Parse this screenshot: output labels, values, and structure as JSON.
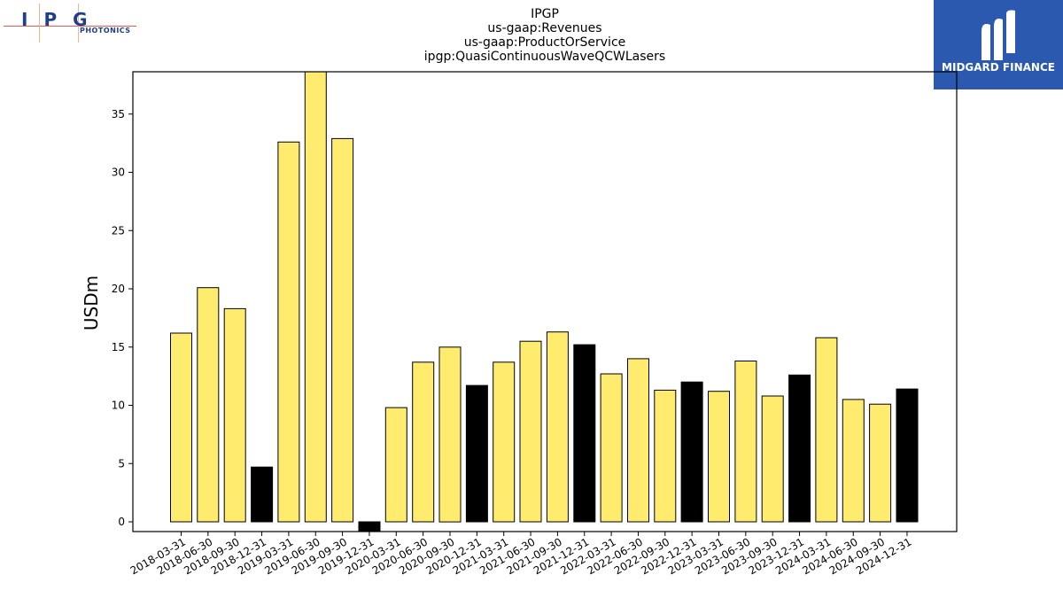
{
  "logos": {
    "left_letters": "IPG",
    "left_sub": "PHOTONICS",
    "right_name": "MIDGARD FINANCE"
  },
  "chart_data": {
    "type": "bar",
    "title_lines": [
      "IPGP",
      "us-gaap:Revenues",
      "us-gaap:ProductOrService",
      "ipgp:QuasiContinuousWaveQCWLasers"
    ],
    "ylabel": "USDm",
    "xlabel": "",
    "ylim": [
      -0.9,
      38.7
    ],
    "yticks": [
      0,
      5,
      10,
      15,
      20,
      25,
      30,
      35
    ],
    "grid": false,
    "categories": [
      "2018-03-31",
      "2018-06-30",
      "2018-09-30",
      "2018-12-31",
      "2019-03-31",
      "2019-06-30",
      "2019-09-30",
      "2019-12-31",
      "2020-03-31",
      "2020-06-30",
      "2020-09-30",
      "2020-12-31",
      "2021-03-31",
      "2021-06-30",
      "2021-09-30",
      "2021-12-31",
      "2022-03-31",
      "2022-06-30",
      "2022-09-30",
      "2022-12-31",
      "2023-03-31",
      "2023-06-30",
      "2023-09-30",
      "2023-12-31",
      "2024-03-31",
      "2024-06-30",
      "2024-09-30",
      "2024-12-31"
    ],
    "values": [
      16.2,
      20.1,
      18.3,
      4.7,
      32.6,
      38.7,
      32.9,
      -0.9,
      9.8,
      13.7,
      15.0,
      11.7,
      13.7,
      15.5,
      16.3,
      15.2,
      12.7,
      14.0,
      11.3,
      12.0,
      11.2,
      13.8,
      10.8,
      12.6,
      15.8,
      10.5,
      10.1,
      11.4
    ],
    "colors": {
      "quarter": "#ffec6e",
      "year_end": "#000000",
      "edge": "#000000"
    }
  }
}
